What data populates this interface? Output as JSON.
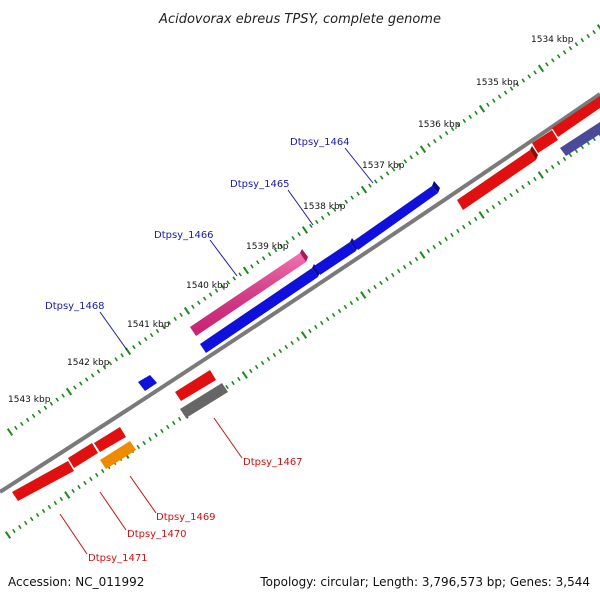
{
  "title": "Acidovorax ebreus TPSY, complete genome",
  "accession": "Accession: NC_011992",
  "summary": "Topology: circular; Length: 3,796,573 bp; Genes: 3,544",
  "colors": {
    "backbone": "#7a7a7a",
    "ticks": "#1a8a1a",
    "label_forward": "#1a1aaa",
    "label_reverse": "#cc1111",
    "red": "#e01010",
    "blue": "#1010dd",
    "pink": "#ee2a8a",
    "orange": "#f08a00",
    "gray": "#666666",
    "navy": "#4a4a99"
  },
  "kbp_labels": [
    "1534 kbp",
    "1535 kbp",
    "1536 kbp",
    "1537 kbp",
    "1538 kbp",
    "1539 kbp",
    "1540 kbp",
    "1541 kbp",
    "1542 kbp",
    "1543 kbp"
  ],
  "gene_labels": [
    {
      "id": "Dtpsy_1464",
      "strand": "forward"
    },
    {
      "id": "Dtpsy_1465",
      "strand": "forward"
    },
    {
      "id": "Dtpsy_1466",
      "strand": "forward"
    },
    {
      "id": "Dtpsy_1468",
      "strand": "forward"
    },
    {
      "id": "Dtpsy_1467",
      "strand": "reverse"
    },
    {
      "id": "Dtpsy_1469",
      "strand": "reverse"
    },
    {
      "id": "Dtpsy_1470",
      "strand": "reverse"
    },
    {
      "id": "Dtpsy_1471",
      "strand": "reverse"
    }
  ]
}
